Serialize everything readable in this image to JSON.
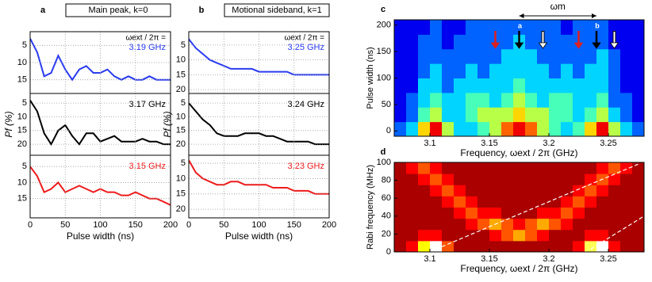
{
  "chart_data": [
    {
      "type": "line",
      "panel": "a",
      "title": "Main peak, k=0",
      "annotation": "ωext / 2π =",
      "x": [
        0,
        10,
        20,
        30,
        40,
        50,
        60,
        70,
        80,
        90,
        100,
        110,
        120,
        130,
        140,
        150,
        160,
        170,
        180,
        190,
        200
      ],
      "series": [
        {
          "name": "3.19 GHz",
          "color": "#2a3cf0",
          "values": [
            3,
            7,
            14,
            13,
            8,
            12,
            15,
            12,
            11,
            13,
            13,
            12,
            14,
            15,
            14,
            15,
            15,
            14,
            15,
            15,
            15
          ]
        }
      ],
      "xlim": [
        0,
        200
      ],
      "xticks": [
        0,
        50,
        100,
        150,
        200
      ],
      "ylim": [
        1,
        19
      ],
      "yticks": [
        5,
        10,
        15
      ],
      "y_inverted": true,
      "grid": true
    },
    {
      "type": "line",
      "ylabel": "Pf (%)",
      "x": [
        0,
        10,
        20,
        30,
        40,
        50,
        60,
        70,
        80,
        90,
        100,
        110,
        120,
        130,
        140,
        150,
        160,
        170,
        180,
        190,
        200
      ],
      "series": [
        {
          "name": "3.17 GHz",
          "color": "#000000",
          "values": [
            4,
            8,
            16,
            20,
            15,
            13,
            17,
            20,
            16,
            16,
            19,
            18,
            17,
            19,
            19,
            19,
            18,
            19,
            19,
            20,
            20
          ]
        }
      ],
      "xlim": [
        0,
        200
      ],
      "xticks": [
        0,
        50,
        100,
        150,
        200
      ],
      "ylim": [
        1.5,
        24
      ],
      "yticks": [
        5,
        10,
        15,
        20
      ],
      "y_inverted": true,
      "grid": true
    },
    {
      "type": "line",
      "xlabel": "Pulse width (ns)",
      "x": [
        0,
        10,
        20,
        30,
        40,
        50,
        60,
        70,
        80,
        90,
        100,
        110,
        120,
        130,
        140,
        150,
        160,
        170,
        180,
        190,
        200
      ],
      "series": [
        {
          "name": "3.15 GHz",
          "color": "#ee1c1c",
          "values": [
            5,
            8,
            13,
            12,
            10,
            13,
            12,
            11,
            12,
            13,
            12,
            13,
            13,
            14,
            14,
            13,
            14,
            15,
            15,
            16,
            17
          ]
        }
      ],
      "xlim": [
        0,
        200
      ],
      "xticks": [
        0,
        50,
        100,
        150,
        200
      ],
      "ylim": [
        1.5,
        21
      ],
      "yticks": [
        5,
        10,
        15
      ],
      "y_inverted": true,
      "grid": true
    },
    {
      "type": "line",
      "panel": "b",
      "title": "Motional sideband, k=1",
      "annotation": "ωext / 2π =",
      "x": [
        0,
        10,
        20,
        30,
        40,
        50,
        60,
        70,
        80,
        90,
        100,
        110,
        120,
        130,
        140,
        150,
        160,
        170,
        180,
        190,
        200
      ],
      "series": [
        {
          "name": "3.25 GHz",
          "color": "#2a3cf0",
          "values": [
            3,
            6,
            8,
            10,
            11,
            12,
            13,
            13,
            13,
            13,
            14,
            14,
            14,
            14,
            14,
            15,
            15,
            15,
            15,
            15,
            15
          ]
        }
      ],
      "xlim": [
        0,
        200
      ],
      "xticks": [
        0,
        50,
        100,
        150,
        200
      ],
      "ylim": [
        0.5,
        21.3
      ],
      "yticks": [
        5,
        10,
        15,
        20
      ],
      "y_inverted": true,
      "grid": true
    },
    {
      "type": "line",
      "ylabel": "Pf (%)",
      "x": [
        0,
        10,
        20,
        30,
        40,
        50,
        60,
        70,
        80,
        90,
        100,
        110,
        120,
        130,
        140,
        150,
        160,
        170,
        180,
        190,
        200
      ],
      "series": [
        {
          "name": "3.24 GHz",
          "color": "#000000",
          "values": [
            5,
            8,
            11,
            13,
            16,
            17,
            17,
            17,
            16,
            16,
            16,
            17,
            17,
            18,
            19,
            19,
            19,
            19,
            20,
            20,
            20
          ]
        }
      ],
      "xlim": [
        0,
        200
      ],
      "xticks": [
        0,
        50,
        100,
        150,
        200
      ],
      "ylim": [
        1.5,
        24
      ],
      "yticks": [
        5,
        10,
        15,
        20
      ],
      "y_inverted": true,
      "grid": true
    },
    {
      "type": "line",
      "xlabel": "Pulse width (ns)",
      "x": [
        0,
        10,
        20,
        30,
        40,
        50,
        60,
        70,
        80,
        90,
        100,
        110,
        120,
        130,
        140,
        150,
        160,
        170,
        180,
        190,
        200
      ],
      "series": [
        {
          "name": "3.23 GHz",
          "color": "#ee1c1c",
          "values": [
            4,
            8,
            10,
            11,
            12,
            12,
            11,
            11,
            12,
            12,
            12,
            12,
            13,
            13,
            13,
            14,
            14,
            14,
            15,
            15,
            15
          ]
        }
      ],
      "xlim": [
        0,
        200
      ],
      "xticks": [
        0,
        50,
        100,
        150,
        200
      ],
      "ylim": [
        2.4,
        22.8
      ],
      "yticks": [
        5,
        10,
        15,
        20
      ],
      "y_inverted": true,
      "grid": true
    },
    {
      "type": "heatmap",
      "panel": "c",
      "colormap": "jet",
      "xlabel": "Frequency, ωext / 2π (GHz)",
      "ylabel": "Pulse width (ns)",
      "xlim": [
        3.07,
        3.28
      ],
      "xticks": [
        3.1,
        3.15,
        3.2,
        3.25
      ],
      "ylim": [
        -10,
        210
      ],
      "yticks": [
        0,
        50,
        100,
        150,
        200
      ],
      "xbins": [
        3.07,
        3.08,
        3.09,
        3.1,
        3.11,
        3.12,
        3.13,
        3.14,
        3.15,
        3.16,
        3.17,
        3.18,
        3.19,
        3.2,
        3.21,
        3.22,
        3.23,
        3.24,
        3.25,
        3.26,
        3.27,
        3.28
      ],
      "ybins": [
        -10,
        17.5,
        45,
        72.5,
        100,
        127.5,
        155,
        182.5,
        210
      ],
      "zlim": [
        0,
        9
      ],
      "z": [
        [
          2,
          3,
          6,
          8,
          5,
          3,
          3,
          4,
          5,
          7,
          8,
          7,
          5,
          4,
          3,
          4,
          6,
          8,
          5,
          3,
          2
        ],
        [
          1,
          2,
          4,
          5,
          3,
          3,
          4,
          5,
          5,
          5,
          6,
          5,
          5,
          4,
          4,
          3,
          4,
          5,
          3,
          2,
          1
        ],
        [
          1,
          2,
          3,
          4,
          3,
          3,
          4,
          4,
          3,
          4,
          5,
          4,
          3,
          4,
          4,
          3,
          3,
          4,
          2,
          2,
          1
        ],
        [
          1,
          1,
          3,
          3,
          2,
          3,
          3,
          3,
          3,
          3,
          4,
          3,
          3,
          3,
          3,
          3,
          3,
          3,
          2,
          1,
          1
        ],
        [
          1,
          1,
          2,
          3,
          2,
          2,
          3,
          2,
          3,
          3,
          3,
          3,
          3,
          2,
          3,
          2,
          3,
          3,
          2,
          1,
          1
        ],
        [
          1,
          1,
          2,
          2,
          2,
          2,
          2,
          2,
          2,
          3,
          3,
          3,
          2,
          2,
          2,
          2,
          2,
          3,
          2,
          1,
          1
        ],
        [
          1,
          1,
          2,
          2,
          1,
          2,
          2,
          2,
          2,
          2,
          3,
          2,
          2,
          2,
          2,
          2,
          2,
          2,
          1,
          1,
          1
        ],
        [
          1,
          1,
          1,
          2,
          1,
          1,
          2,
          2,
          2,
          2,
          2,
          2,
          2,
          2,
          1,
          2,
          2,
          2,
          1,
          1,
          1
        ]
      ],
      "arrows": [
        {
          "x": 3.155,
          "color": "#e02020"
        },
        {
          "x": 3.175,
          "color": "#000000",
          "label": "a"
        },
        {
          "x": 3.195,
          "color": "#ffffff"
        },
        {
          "x": 3.225,
          "color": "#e02020"
        },
        {
          "x": 3.24,
          "color": "#000000",
          "label": "b"
        },
        {
          "x": 3.255,
          "color": "#ffffff"
        }
      ],
      "bracket": {
        "label": "ωm",
        "x": [
          3.175,
          3.24
        ]
      }
    },
    {
      "type": "heatmap",
      "panel": "d",
      "colormap": "hot",
      "xlabel": "Frequency, ωext / 2π (GHz)",
      "ylabel": "Rabi frequency (MHz)",
      "xlim": [
        3.07,
        3.28
      ],
      "xticks": [
        3.1,
        3.15,
        3.2,
        3.25
      ],
      "ylim": [
        0,
        100
      ],
      "yticks": [
        0,
        20,
        40,
        60,
        80,
        100
      ],
      "xbins": [
        3.07,
        3.08,
        3.09,
        3.1,
        3.11,
        3.12,
        3.13,
        3.14,
        3.15,
        3.16,
        3.17,
        3.18,
        3.19,
        3.2,
        3.21,
        3.22,
        3.23,
        3.24,
        3.25,
        3.26,
        3.27,
        3.28
      ],
      "ybins": [
        0,
        12.5,
        25,
        37.5,
        50,
        62.5,
        75,
        87.5,
        100
      ],
      "zlim": [
        0,
        9
      ],
      "z": [
        [
          2,
          3,
          6,
          9,
          4,
          2,
          2,
          2,
          2,
          2,
          2,
          2,
          2,
          2,
          2,
          3,
          7,
          9,
          3,
          2,
          2
        ],
        [
          2,
          2,
          3,
          3,
          2,
          2,
          2,
          2,
          3,
          4,
          5,
          4,
          3,
          2,
          2,
          2,
          3,
          3,
          2,
          2,
          2
        ],
        [
          2,
          2,
          2,
          2,
          2,
          2,
          3,
          4,
          5,
          4,
          3,
          4,
          5,
          4,
          3,
          2,
          2,
          2,
          2,
          2,
          2
        ],
        [
          2,
          2,
          2,
          2,
          2,
          3,
          4,
          3,
          3,
          2,
          2,
          2,
          3,
          3,
          4,
          3,
          2,
          2,
          2,
          2,
          2
        ],
        [
          2,
          2,
          2,
          2,
          3,
          4,
          3,
          2,
          2,
          2,
          2,
          2,
          2,
          2,
          3,
          4,
          3,
          2,
          2,
          2,
          2
        ],
        [
          2,
          2,
          2,
          3,
          4,
          3,
          2,
          2,
          2,
          2,
          2,
          2,
          2,
          2,
          2,
          3,
          4,
          3,
          2,
          2,
          2
        ],
        [
          2,
          2,
          3,
          4,
          3,
          2,
          2,
          2,
          2,
          2,
          2,
          2,
          2,
          2,
          2,
          2,
          3,
          4,
          3,
          2,
          2
        ],
        [
          2,
          3,
          4,
          3,
          2,
          2,
          2,
          2,
          2,
          2,
          2,
          2,
          2,
          2,
          2,
          2,
          2,
          3,
          4,
          3,
          2
        ]
      ],
      "lines": [
        {
          "color": "#ffffff",
          "x": [
            3.105,
            3.275
          ],
          "y": [
            3,
            98
          ]
        },
        {
          "color": "#ffffff",
          "x": [
            3.235,
            3.28
          ],
          "y": [
            3,
            40
          ]
        }
      ]
    }
  ]
}
